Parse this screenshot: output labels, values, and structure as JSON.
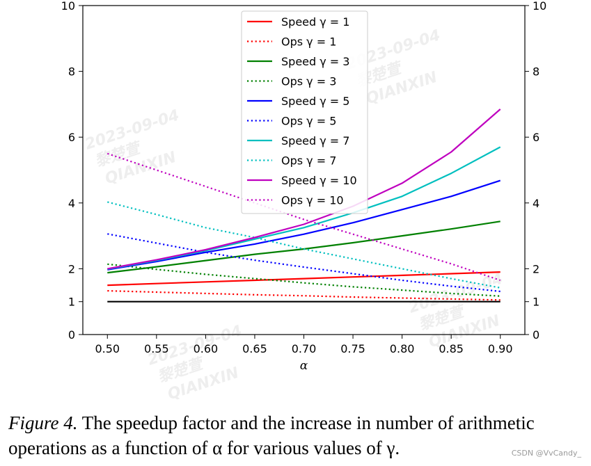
{
  "chart_data": {
    "type": "line",
    "xlabel": "α",
    "ylabel": "",
    "xlim": [
      0.475,
      0.925
    ],
    "ylim": [
      0,
      10
    ],
    "xticks": [
      "0.50",
      "0.55",
      "0.60",
      "0.65",
      "0.70",
      "0.75",
      "0.80",
      "0.85",
      "0.90"
    ],
    "xtick_values": [
      0.5,
      0.55,
      0.6,
      0.65,
      0.7,
      0.75,
      0.8,
      0.85,
      0.9
    ],
    "yticks": [
      "0",
      "1",
      "2",
      "4",
      "6",
      "8",
      "10"
    ],
    "ytick_values": [
      0,
      1,
      2,
      4,
      6,
      8,
      10
    ],
    "grid": false,
    "legend_position": "top-center",
    "x": [
      0.5,
      0.55,
      0.6,
      0.65,
      0.7,
      0.75,
      0.8,
      0.85,
      0.9
    ],
    "series": [
      {
        "name": "Speed γ = 1",
        "color": "#ff0000",
        "style": "solid",
        "values": [
          1.5,
          1.55,
          1.6,
          1.65,
          1.7,
          1.75,
          1.8,
          1.85,
          1.9
        ]
      },
      {
        "name": "Ops γ = 1",
        "color": "#ff0000",
        "style": "dotted",
        "values": [
          1.33,
          1.29,
          1.25,
          1.21,
          1.18,
          1.14,
          1.11,
          1.08,
          1.05
        ]
      },
      {
        "name": "Speed γ = 3",
        "color": "#008000",
        "style": "solid",
        "values": [
          1.88,
          2.06,
          2.25,
          2.44,
          2.6,
          2.79,
          3.0,
          3.21,
          3.44
        ]
      },
      {
        "name": "Ops γ = 3",
        "color": "#008000",
        "style": "dotted",
        "values": [
          2.14,
          1.98,
          1.83,
          1.7,
          1.57,
          1.45,
          1.35,
          1.25,
          1.17
        ]
      },
      {
        "name": "Speed γ = 5",
        "color": "#0000ff",
        "style": "solid",
        "values": [
          1.97,
          2.22,
          2.5,
          2.75,
          3.05,
          3.4,
          3.8,
          4.2,
          4.68
        ]
      },
      {
        "name": "Ops γ = 5",
        "color": "#0000ff",
        "style": "dotted",
        "values": [
          3.06,
          2.78,
          2.5,
          2.26,
          2.05,
          1.85,
          1.65,
          1.47,
          1.31
        ]
      },
      {
        "name": "Speed γ = 7",
        "color": "#00bfbf",
        "style": "solid",
        "values": [
          1.99,
          2.25,
          2.55,
          2.9,
          3.25,
          3.7,
          4.2,
          4.9,
          5.7
        ]
      },
      {
        "name": "Ops γ = 7",
        "color": "#00bfbf",
        "style": "dotted",
        "values": [
          4.03,
          3.65,
          3.25,
          2.95,
          2.6,
          2.3,
          2.0,
          1.7,
          1.42
        ]
      },
      {
        "name": "Speed γ = 10",
        "color": "#bf00bf",
        "style": "solid",
        "values": [
          2.0,
          2.27,
          2.58,
          2.95,
          3.35,
          3.9,
          4.6,
          5.55,
          6.85
        ]
      },
      {
        "name": "Ops γ = 10",
        "color": "#bf00bf",
        "style": "dotted",
        "values": [
          5.5,
          5.0,
          4.5,
          4.0,
          3.5,
          3.05,
          2.6,
          2.15,
          1.65
        ]
      }
    ],
    "reference_line": {
      "value": 1,
      "color": "#000000"
    }
  },
  "caption": {
    "figure_label": "Figure 4.",
    "text": " The speedup factor and the increase in number of arithmetic operations as a function of α for various values of γ."
  },
  "watermarks": [
    "2023-09-04",
    "黎楚萱",
    "QIANXIN"
  ],
  "credit": "CSDN @VvCandy_"
}
